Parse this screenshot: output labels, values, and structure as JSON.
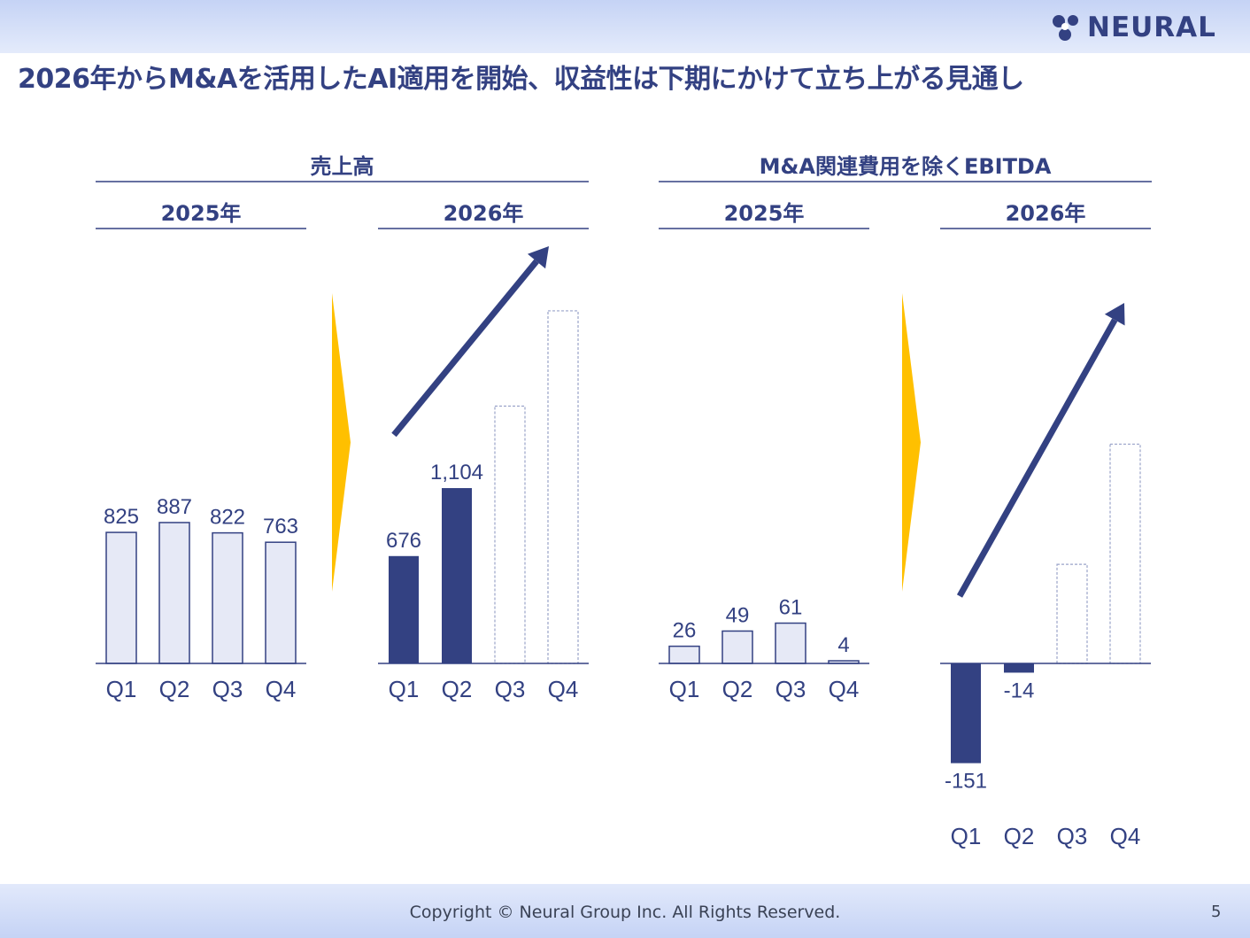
{
  "header": {
    "logo_text": "NEURAL",
    "title": "2026年からM&Aを活用したAI適用を開始、収益性は下期にかけて立ち上がる見通し"
  },
  "footer": {
    "copyright": "Copyright © Neural Group Inc. All Rights Reserved.",
    "page_number": "5"
  },
  "colors": {
    "primary": "#334182",
    "light_bar_fill": "#e6e9f6",
    "accent_arrow": "#ffc000",
    "projection_outline": "#9aa3c9"
  },
  "chart_data": [
    {
      "type": "bar",
      "group_title": "売上高",
      "title": "2025年",
      "categories": [
        "Q1",
        "Q2",
        "Q3",
        "Q4"
      ],
      "values": [
        825,
        887,
        822,
        763
      ],
      "labels": [
        "825",
        "887",
        "822",
        "763"
      ],
      "style": [
        "light",
        "light",
        "light",
        "light"
      ]
    },
    {
      "type": "bar",
      "group_title": "売上高",
      "title": "2026年",
      "categories": [
        "Q1",
        "Q2",
        "Q3",
        "Q4"
      ],
      "values": [
        676,
        1104,
        1620,
        2220
      ],
      "labels": [
        "676",
        "1,104",
        "",
        ""
      ],
      "style": [
        "solid",
        "solid",
        "projected",
        "projected"
      ],
      "trend_arrow": "up"
    },
    {
      "type": "bar",
      "group_title": "M&A関連費用を除くEBITDA",
      "title": "2025年",
      "categories": [
        "Q1",
        "Q2",
        "Q3",
        "Q4"
      ],
      "values": [
        26,
        49,
        61,
        4
      ],
      "labels": [
        "26",
        "49",
        "61",
        "4"
      ],
      "style": [
        "light",
        "light",
        "light",
        "light"
      ]
    },
    {
      "type": "bar",
      "group_title": "M&A関連費用を除くEBITDA",
      "title": "2026年",
      "categories": [
        "Q1",
        "Q2",
        "Q3",
        "Q4"
      ],
      "values": [
        -151,
        -14,
        150,
        332
      ],
      "labels": [
        "-151",
        "-14",
        "",
        ""
      ],
      "style": [
        "solid",
        "solid",
        "projected",
        "projected"
      ],
      "trend_arrow": "up"
    }
  ]
}
